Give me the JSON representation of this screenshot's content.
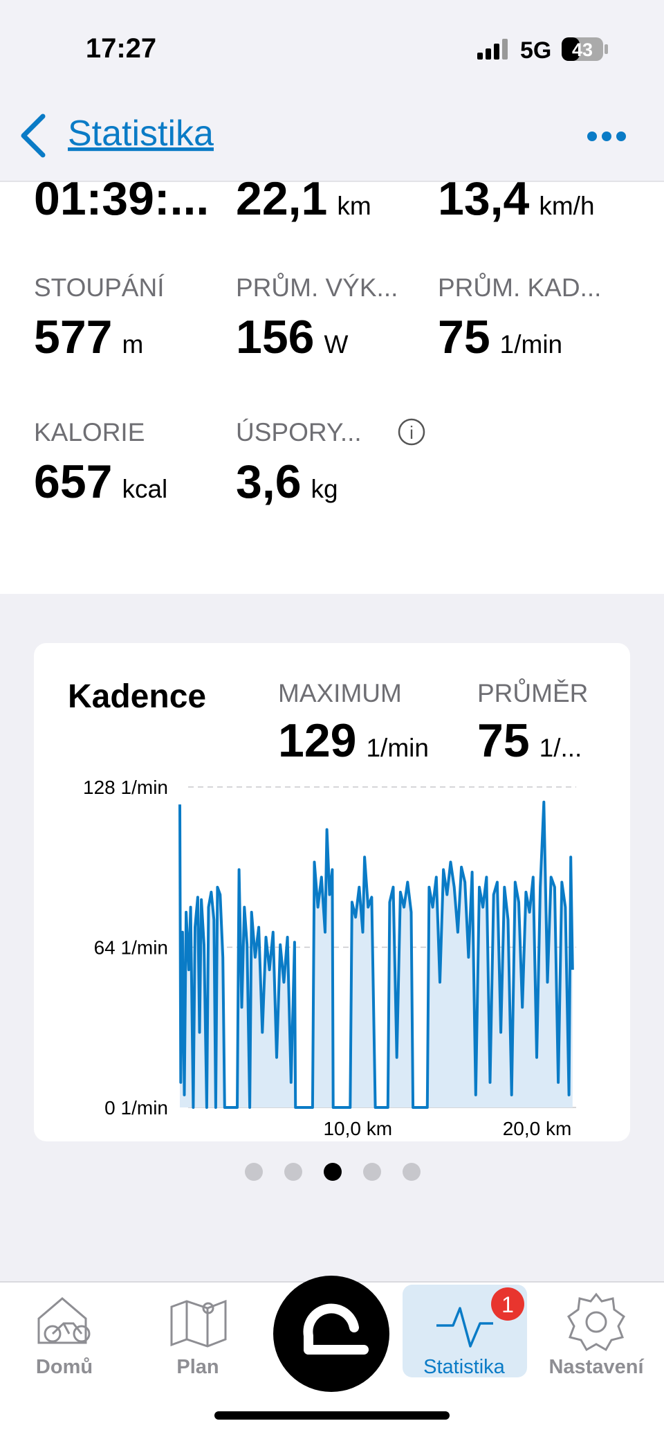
{
  "status": {
    "time": "17:27",
    "network": "5G",
    "battery": "43"
  },
  "header": {
    "title": "Statistika"
  },
  "stats": [
    {
      "value": "01:39:..."
    },
    {
      "value": "22,1",
      "unit": "km"
    },
    {
      "value": "13,4",
      "unit": "km/h"
    },
    {
      "label": "STOUPÁNÍ",
      "value": "577",
      "unit": "m"
    },
    {
      "label": "PRŮM. VÝK...",
      "value": "156",
      "unit": "W"
    },
    {
      "label": "PRŮM. KAD...",
      "value": "75",
      "unit": "1/min"
    },
    {
      "label": "KALORIE",
      "value": "657",
      "unit": "kcal"
    },
    {
      "label": "ÚSPORY...",
      "value": "3,6",
      "unit": "kg"
    }
  ],
  "card": {
    "title": "Kadence",
    "maximum": {
      "label": "MAXIMUM",
      "value": "129",
      "unit": "1/min"
    },
    "average": {
      "label": "PRŮMĚR",
      "value": "75",
      "unit": "1/..."
    },
    "chart": {
      "type": "line",
      "color": "#0a7bc6",
      "x": [
        0.0,
        0.05,
        0.15,
        0.25,
        0.35,
        0.5,
        0.6,
        0.75,
        0.85,
        1.0,
        1.1,
        1.2,
        1.35,
        1.5,
        1.6,
        1.75,
        1.9,
        2.0,
        2.1,
        2.25,
        2.4,
        2.5,
        3.2,
        3.3,
        3.45,
        3.6,
        3.75,
        3.9,
        4.0,
        4.2,
        4.4,
        4.6,
        4.8,
        5.0,
        5.2,
        5.4,
        5.6,
        5.8,
        6.0,
        6.2,
        6.4,
        6.45,
        7.4,
        7.5,
        7.7,
        7.9,
        8.1,
        8.2,
        8.35,
        8.5,
        8.55,
        9.5,
        9.6,
        9.8,
        10.0,
        10.2,
        10.3,
        10.5,
        10.7,
        10.9,
        11.6,
        11.7,
        11.9,
        12.1,
        12.3,
        12.5,
        12.7,
        12.9,
        13.0,
        13.8,
        13.9,
        14.1,
        14.3,
        14.5,
        14.7,
        14.9,
        15.1,
        15.3,
        15.5,
        15.7,
        15.9,
        16.1,
        16.3,
        16.5,
        16.7,
        16.9,
        17.1,
        17.3,
        17.5,
        17.7,
        17.9,
        18.1,
        18.3,
        18.5,
        18.7,
        18.9,
        19.1,
        19.3,
        19.5,
        19.7,
        19.9,
        20.1,
        20.3,
        20.5,
        20.7,
        20.9,
        21.1,
        21.3,
        21.5,
        21.7,
        21.8,
        21.9
      ],
      "values": [
        121,
        10,
        70,
        5,
        78,
        55,
        80,
        0,
        72,
        84,
        30,
        83,
        65,
        0,
        80,
        86,
        75,
        0,
        88,
        85,
        60,
        0,
        0,
        95,
        40,
        80,
        65,
        0,
        78,
        60,
        72,
        30,
        68,
        55,
        70,
        20,
        65,
        50,
        68,
        10,
        66,
        0,
        0,
        98,
        80,
        92,
        70,
        111,
        85,
        95,
        0,
        0,
        82,
        76,
        88,
        70,
        100,
        80,
        84,
        0,
        0,
        82,
        88,
        20,
        86,
        80,
        90,
        78,
        0,
        0,
        88,
        80,
        92,
        50,
        95,
        85,
        98,
        88,
        70,
        96,
        90,
        60,
        94,
        5,
        88,
        80,
        92,
        10,
        85,
        90,
        30,
        88,
        75,
        5,
        90,
        82,
        40,
        86,
        78,
        92,
        20,
        88,
        122,
        50,
        92,
        88,
        10,
        90,
        80,
        5,
        100,
        55
      ],
      "xlim": [
        0,
        22.1
      ],
      "ylim": [
        0,
        128
      ],
      "yticks": [
        {
          "value": 0,
          "label": "0 1/min"
        },
        {
          "value": 64,
          "label": "64 1/min"
        },
        {
          "value": 128,
          "label": "128 1/min"
        }
      ],
      "xticks": [
        {
          "value": 10,
          "label": "10,0 km"
        },
        {
          "value": 20,
          "label": "20,0 km"
        }
      ]
    }
  },
  "pager": {
    "count": 5,
    "active": 2
  },
  "tabs": [
    {
      "label": "Domů"
    },
    {
      "label": "Plan"
    },
    {
      "label": "Statistika",
      "badge": "1"
    },
    {
      "label": "Nastavení"
    }
  ]
}
